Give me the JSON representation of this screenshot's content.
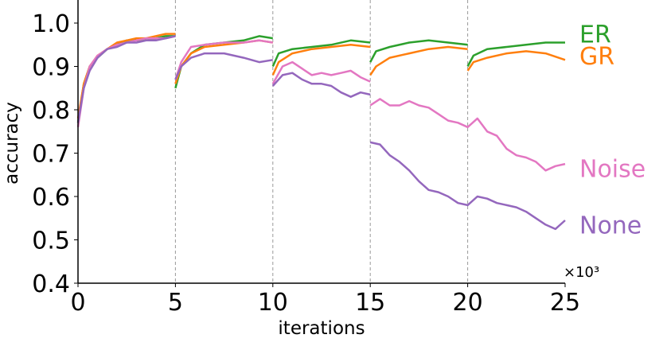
{
  "chart_data": {
    "type": "line",
    "xlabel": "iterations",
    "ylabel": "accuracy",
    "x_multiplier": "×10³",
    "xlim": [
      0,
      25
    ],
    "ylim": [
      0.4,
      1.05
    ],
    "xticks": [
      "0",
      "5",
      "10",
      "15",
      "20",
      "25"
    ],
    "yticks": [
      "0.4",
      "0.5",
      "0.6",
      "0.7",
      "0.8",
      "0.9",
      "1.0"
    ],
    "task_boundaries": [
      5,
      10,
      15,
      20
    ],
    "grid": false,
    "legend": "inline labels at right end of lines",
    "series": [
      {
        "name": "ER",
        "color": "#2ca02c",
        "segments": [
          [
            [
              0,
              0.77
            ],
            [
              0.3,
              0.86
            ],
            [
              0.6,
              0.9
            ],
            [
              1,
              0.92
            ],
            [
              1.5,
              0.94
            ],
            [
              2,
              0.95
            ],
            [
              2.5,
              0.96
            ],
            [
              3,
              0.96
            ],
            [
              3.5,
              0.96
            ],
            [
              4,
              0.965
            ],
            [
              4.5,
              0.97
            ],
            [
              5,
              0.97
            ]
          ],
          [
            [
              5,
              0.85
            ],
            [
              5.3,
              0.9
            ],
            [
              5.8,
              0.93
            ],
            [
              6.5,
              0.95
            ],
            [
              7.5,
              0.955
            ],
            [
              8.5,
              0.96
            ],
            [
              9.3,
              0.97
            ],
            [
              10,
              0.965
            ]
          ],
          [
            [
              10,
              0.9
            ],
            [
              10.3,
              0.93
            ],
            [
              11,
              0.94
            ],
            [
              12,
              0.945
            ],
            [
              13,
              0.95
            ],
            [
              14,
              0.96
            ],
            [
              15,
              0.955
            ]
          ],
          [
            [
              15,
              0.91
            ],
            [
              15.3,
              0.935
            ],
            [
              16,
              0.945
            ],
            [
              17,
              0.955
            ],
            [
              18,
              0.96
            ],
            [
              19,
              0.955
            ],
            [
              20,
              0.95
            ]
          ],
          [
            [
              20,
              0.9
            ],
            [
              20.3,
              0.925
            ],
            [
              21,
              0.94
            ],
            [
              22,
              0.945
            ],
            [
              23,
              0.95
            ],
            [
              24,
              0.955
            ],
            [
              25,
              0.955
            ]
          ]
        ]
      },
      {
        "name": "GR",
        "color": "#ff7f0e",
        "segments": [
          [
            [
              0,
              0.78
            ],
            [
              0.3,
              0.86
            ],
            [
              0.6,
              0.9
            ],
            [
              1,
              0.925
            ],
            [
              1.5,
              0.94
            ],
            [
              2,
              0.955
            ],
            [
              2.5,
              0.96
            ],
            [
              3,
              0.965
            ],
            [
              3.5,
              0.965
            ],
            [
              4,
              0.97
            ],
            [
              4.5,
              0.975
            ],
            [
              5,
              0.975
            ]
          ],
          [
            [
              5,
              0.86
            ],
            [
              5.3,
              0.9
            ],
            [
              5.8,
              0.93
            ],
            [
              6.5,
              0.945
            ],
            [
              7.5,
              0.95
            ],
            [
              8.5,
              0.955
            ],
            [
              9.3,
              0.96
            ],
            [
              10,
              0.955
            ]
          ],
          [
            [
              10,
              0.88
            ],
            [
              10.3,
              0.91
            ],
            [
              11,
              0.93
            ],
            [
              12,
              0.94
            ],
            [
              13,
              0.945
            ],
            [
              14,
              0.95
            ],
            [
              15,
              0.945
            ]
          ],
          [
            [
              15,
              0.88
            ],
            [
              15.3,
              0.9
            ],
            [
              16,
              0.92
            ],
            [
              17,
              0.93
            ],
            [
              18,
              0.94
            ],
            [
              19,
              0.945
            ],
            [
              20,
              0.94
            ]
          ],
          [
            [
              20,
              0.89
            ],
            [
              20.3,
              0.91
            ],
            [
              21,
              0.92
            ],
            [
              22,
              0.93
            ],
            [
              23,
              0.935
            ],
            [
              24,
              0.93
            ],
            [
              25,
              0.915
            ]
          ]
        ]
      },
      {
        "name": "Noise",
        "color": "#e377c2",
        "segments": [
          [
            [
              0,
              0.76
            ],
            [
              0.3,
              0.85
            ],
            [
              0.6,
              0.9
            ],
            [
              1,
              0.925
            ],
            [
              1.5,
              0.94
            ],
            [
              2,
              0.95
            ],
            [
              2.5,
              0.955
            ],
            [
              3,
              0.96
            ],
            [
              3.5,
              0.965
            ],
            [
              4,
              0.965
            ],
            [
              4.5,
              0.965
            ],
            [
              5,
              0.97
            ]
          ],
          [
            [
              5,
              0.87
            ],
            [
              5.3,
              0.91
            ],
            [
              5.8,
              0.945
            ],
            [
              6.5,
              0.95
            ],
            [
              7.5,
              0.955
            ],
            [
              8.5,
              0.955
            ],
            [
              9.3,
              0.96
            ],
            [
              10,
              0.955
            ]
          ],
          [
            [
              10,
              0.86
            ],
            [
              10.5,
              0.9
            ],
            [
              11,
              0.91
            ],
            [
              11.5,
              0.895
            ],
            [
              12,
              0.88
            ],
            [
              12.5,
              0.885
            ],
            [
              13,
              0.88
            ],
            [
              13.5,
              0.885
            ],
            [
              14,
              0.89
            ],
            [
              14.5,
              0.875
            ],
            [
              15,
              0.865
            ]
          ],
          [
            [
              15,
              0.81
            ],
            [
              15.5,
              0.825
            ],
            [
              16,
              0.81
            ],
            [
              16.5,
              0.81
            ],
            [
              17,
              0.82
            ],
            [
              17.5,
              0.81
            ],
            [
              18,
              0.805
            ],
            [
              18.5,
              0.79
            ],
            [
              19,
              0.775
            ],
            [
              19.5,
              0.77
            ],
            [
              20,
              0.76
            ],
            [
              20.5,
              0.78
            ],
            [
              21,
              0.75
            ],
            [
              21.5,
              0.74
            ],
            [
              22,
              0.71
            ],
            [
              22.5,
              0.695
            ],
            [
              23,
              0.69
            ],
            [
              23.5,
              0.68
            ],
            [
              24,
              0.66
            ],
            [
              24.5,
              0.67
            ],
            [
              25,
              0.675
            ]
          ]
        ]
      },
      {
        "name": "None",
        "color": "#9467bd",
        "segments": [
          [
            [
              0,
              0.77
            ],
            [
              0.3,
              0.85
            ],
            [
              0.6,
              0.89
            ],
            [
              1,
              0.92
            ],
            [
              1.5,
              0.94
            ],
            [
              2,
              0.945
            ],
            [
              2.5,
              0.955
            ],
            [
              3,
              0.955
            ],
            [
              3.5,
              0.96
            ],
            [
              4,
              0.96
            ],
            [
              4.5,
              0.965
            ],
            [
              5,
              0.97
            ]
          ],
          [
            [
              5,
              0.87
            ],
            [
              5.3,
              0.9
            ],
            [
              5.8,
              0.92
            ],
            [
              6.5,
              0.93
            ],
            [
              7.5,
              0.93
            ],
            [
              8.5,
              0.92
            ],
            [
              9.3,
              0.91
            ],
            [
              10,
              0.915
            ]
          ],
          [
            [
              10,
              0.855
            ],
            [
              10.5,
              0.88
            ],
            [
              11,
              0.885
            ],
            [
              11.5,
              0.87
            ],
            [
              12,
              0.86
            ],
            [
              12.5,
              0.86
            ],
            [
              13,
              0.855
            ],
            [
              13.5,
              0.84
            ],
            [
              14,
              0.83
            ],
            [
              14.5,
              0.84
            ],
            [
              15,
              0.835
            ]
          ],
          [
            [
              15,
              0.725
            ],
            [
              15.5,
              0.72
            ],
            [
              16,
              0.695
            ],
            [
              16.5,
              0.68
            ],
            [
              17,
              0.66
            ],
            [
              17.5,
              0.635
            ],
            [
              18,
              0.615
            ],
            [
              18.5,
              0.61
            ],
            [
              19,
              0.6
            ],
            [
              19.5,
              0.585
            ],
            [
              20,
              0.58
            ],
            [
              20.5,
              0.6
            ],
            [
              21,
              0.595
            ],
            [
              21.5,
              0.585
            ],
            [
              22,
              0.58
            ],
            [
              22.5,
              0.575
            ],
            [
              23,
              0.565
            ],
            [
              23.5,
              0.55
            ],
            [
              24,
              0.535
            ],
            [
              24.5,
              0.525
            ],
            [
              25,
              0.545
            ]
          ]
        ]
      }
    ],
    "labels": [
      {
        "series": "ER",
        "text": "ER"
      },
      {
        "series": "GR",
        "text": "GR"
      },
      {
        "series": "Noise",
        "text": "Noise"
      },
      {
        "series": "None",
        "text": "None"
      }
    ]
  }
}
